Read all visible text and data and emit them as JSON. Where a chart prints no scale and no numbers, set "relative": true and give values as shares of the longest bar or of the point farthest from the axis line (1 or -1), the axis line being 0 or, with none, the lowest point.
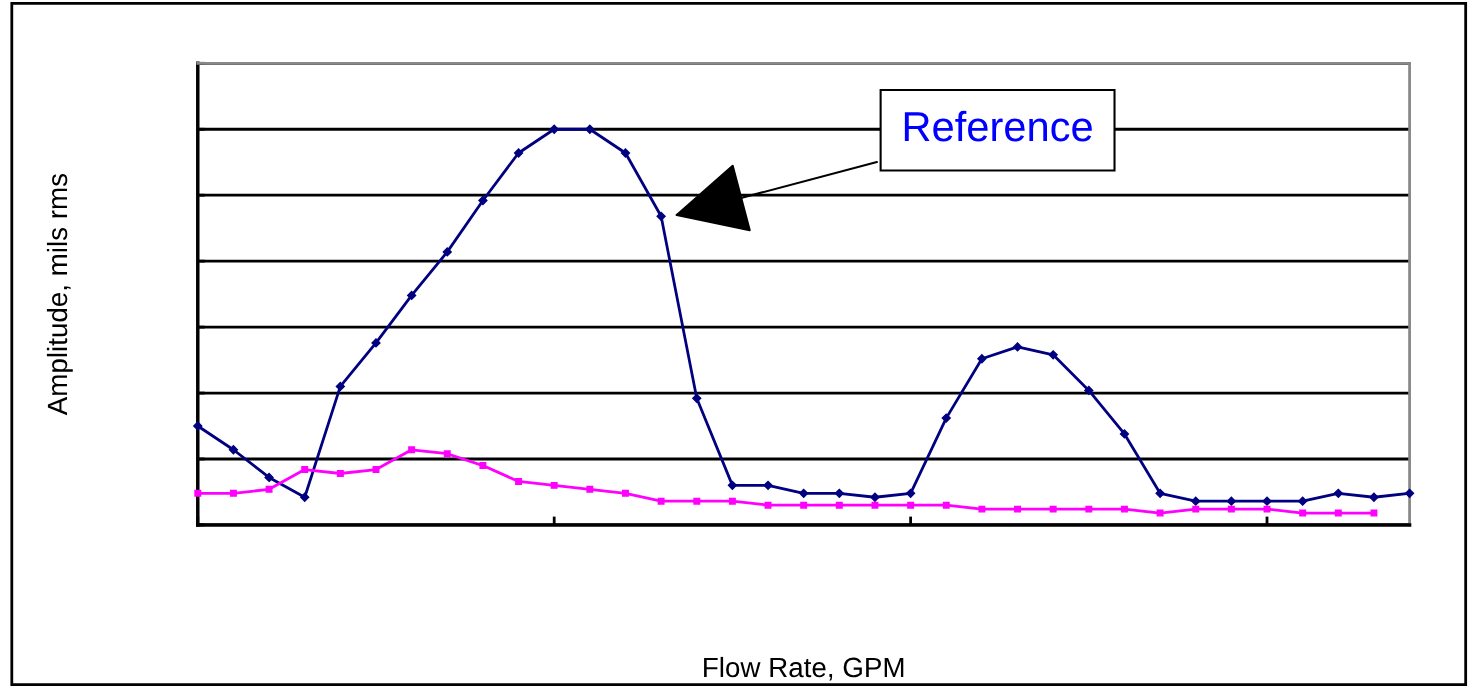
{
  "chart_data": {
    "type": "line",
    "relative": true,
    "xlabel": "Flow Rate, GPM",
    "ylabel": "Amplitude, mils rms",
    "categories": [
      null,
      null,
      null,
      null,
      null,
      null,
      null,
      null,
      null,
      null,
      null,
      null,
      null,
      null,
      null,
      null,
      null,
      null,
      null,
      null,
      null,
      null,
      null,
      null,
      null,
      null,
      null,
      null,
      null,
      null,
      null,
      null,
      null,
      null,
      null
    ],
    "tick_labels": false,
    "grid": "y",
    "line_style": "solid",
    "annotations": [
      "Reference"
    ],
    "series": [
      {
        "color": "#000080",
        "marker": "diamond",
        "values": [
          0.25,
          0.19,
          0.12,
          0.07,
          0.35,
          0.46,
          0.58,
          0.69,
          0.82,
          0.94,
          1.0,
          1.0,
          0.94,
          0.78,
          0.32,
          0.1,
          0.1,
          0.08,
          0.08,
          0.07,
          0.08,
          0.27,
          0.42,
          0.45,
          0.43,
          0.34,
          0.23,
          0.08,
          0.06,
          0.06,
          0.06,
          0.06,
          0.08,
          0.07,
          0.08
        ]
      },
      {
        "color": "#ff00ff",
        "marker": "square",
        "values": [
          0.08,
          0.08,
          0.09,
          0.14,
          0.13,
          0.14,
          0.19,
          0.18,
          0.15,
          0.11,
          0.1,
          0.09,
          0.08,
          0.06,
          0.06,
          0.06,
          0.05,
          0.05,
          0.05,
          0.05,
          0.05,
          0.05,
          0.04,
          0.04,
          0.04,
          0.04,
          0.04,
          0.03,
          0.04,
          0.04,
          0.04,
          0.03,
          0.03,
          0.03,
          null
        ]
      }
    ]
  }
}
